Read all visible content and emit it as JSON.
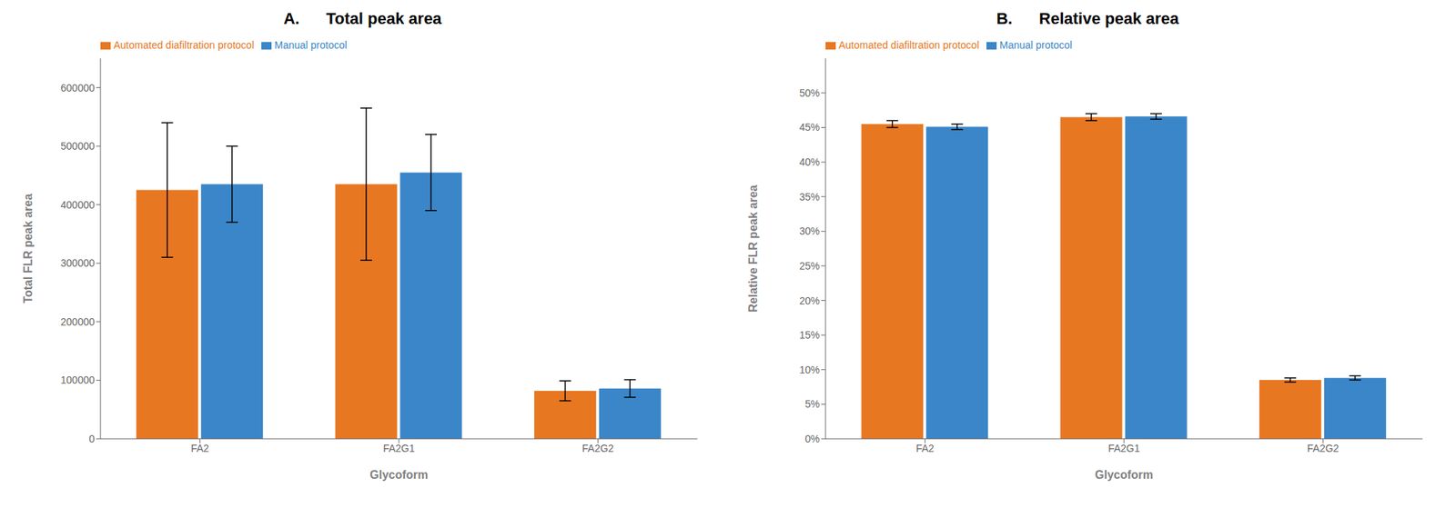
{
  "chart_data": [
    {
      "type": "bar",
      "title": "A.      Total peak area",
      "xlabel": "Glycoform",
      "ylabel": "Total FLR peak area",
      "categories": [
        "FA2",
        "FA2G1",
        "FA2G2"
      ],
      "series": [
        {
          "name": "Automated diafiltration protocol",
          "color": "#E87722",
          "values": [
            425000,
            435000,
            82000
          ],
          "errors": [
            115000,
            130000,
            17000
          ]
        },
        {
          "name": "Manual protocol",
          "color": "#3A86C8",
          "values": [
            435000,
            455000,
            86000
          ],
          "errors": [
            65000,
            65000,
            15000
          ]
        }
      ],
      "ylim": [
        0,
        650000
      ],
      "yticks": [
        0,
        100000,
        200000,
        300000,
        400000,
        500000,
        600000
      ],
      "grid": false,
      "legend": "upper left"
    },
    {
      "type": "bar",
      "title": "B.      Relative peak area",
      "xlabel": "Glycoform",
      "ylabel": "Relative FLR peak area",
      "categories": [
        "FA2",
        "FA2G1",
        "FA2G2"
      ],
      "series": [
        {
          "name": "Automated diafiltration protocol",
          "color": "#E87722",
          "values": [
            0.455,
            0.465,
            0.085
          ],
          "errors": [
            0.005,
            0.005,
            0.003
          ]
        },
        {
          "name": "Manual protocol",
          "color": "#3A86C8",
          "values": [
            0.451,
            0.466,
            0.088
          ],
          "errors": [
            0.004,
            0.004,
            0.003
          ]
        }
      ],
      "ylim": [
        0,
        0.55
      ],
      "yticks": [
        {
          "value": 0,
          "label": "0%"
        },
        {
          "value": 0.05,
          "label": "5%"
        },
        {
          "value": 0.1,
          "label": "10%"
        },
        {
          "value": 0.15,
          "label": "15%"
        },
        {
          "value": 0.2,
          "label": "20%"
        },
        {
          "value": 0.25,
          "label": "25%"
        },
        {
          "value": 0.3,
          "label": "30%"
        },
        {
          "value": 0.35,
          "label": "35%"
        },
        {
          "value": 0.4,
          "label": "40%"
        },
        {
          "value": 0.45,
          "label": "45%"
        },
        {
          "value": 0.5,
          "label": "50%"
        }
      ],
      "grid": false,
      "legend": "upper left"
    }
  ]
}
